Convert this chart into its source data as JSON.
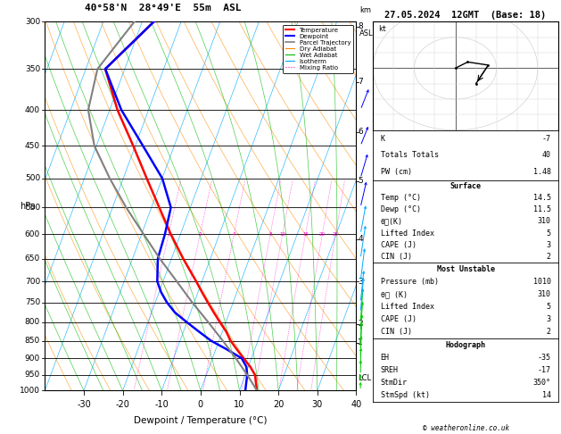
{
  "title_left": "40°58'N  28°49'E  55m  ASL",
  "title_right": "27.05.2024  12GMT  (Base: 18)",
  "xlabel": "Dewpoint / Temperature (°C)",
  "pressure_ticks": [
    300,
    350,
    400,
    450,
    500,
    550,
    600,
    650,
    700,
    750,
    800,
    850,
    900,
    950,
    1000
  ],
  "temp_ticks": [
    -30,
    -20,
    -10,
    0,
    10,
    20,
    30,
    40
  ],
  "km_ticks": [
    1,
    2,
    3,
    4,
    5,
    6,
    7,
    8
  ],
  "km_pressures": [
    855,
    805,
    700,
    610,
    505,
    430,
    365,
    305
  ],
  "lcl_pressure": 960,
  "temperature_profile": {
    "pressure": [
      1000,
      975,
      950,
      925,
      900,
      875,
      850,
      825,
      800,
      775,
      750,
      725,
      700,
      650,
      600,
      550,
      500,
      450,
      400,
      350,
      300
    ],
    "temperature": [
      14.5,
      13.5,
      12.5,
      10.5,
      8.0,
      5.5,
      3.0,
      1.0,
      -1.5,
      -4.0,
      -6.5,
      -9.0,
      -11.5,
      -17.0,
      -22.5,
      -28.0,
      -34.0,
      -40.5,
      -48.0,
      -55.0,
      -47.0
    ]
  },
  "dewpoint_profile": {
    "pressure": [
      1000,
      975,
      950,
      925,
      900,
      875,
      850,
      825,
      800,
      775,
      750,
      725,
      700,
      650,
      600,
      550,
      500,
      450,
      400,
      350,
      300
    ],
    "temperature": [
      11.5,
      11.0,
      10.5,
      9.5,
      7.5,
      3.0,
      -2.0,
      -6.0,
      -10.0,
      -14.0,
      -17.0,
      -19.5,
      -21.5,
      -23.5,
      -24.0,
      -25.0,
      -30.0,
      -38.0,
      -47.0,
      -55.0,
      -47.0
    ]
  },
  "parcel_trajectory": {
    "pressure": [
      1000,
      950,
      900,
      850,
      800,
      750,
      700,
      650,
      600,
      550,
      500,
      450,
      400,
      350,
      300
    ],
    "temperature": [
      14.5,
      10.5,
      6.0,
      1.0,
      -4.5,
      -10.5,
      -16.5,
      -23.0,
      -29.5,
      -36.5,
      -43.5,
      -50.5,
      -55.5,
      -57.0,
      -52.0
    ]
  },
  "wind_barbs": {
    "pressure": [
      1000,
      975,
      950,
      925,
      900,
      875,
      850,
      825,
      800,
      775,
      750,
      700,
      650,
      600,
      550,
      500,
      450,
      400,
      350,
      300
    ],
    "speed_kt": [
      5,
      5,
      8,
      10,
      12,
      15,
      15,
      18,
      20,
      22,
      22,
      25,
      28,
      28,
      30,
      35,
      38,
      40,
      45,
      50
    ],
    "direction_deg": [
      180,
      185,
      190,
      195,
      200,
      205,
      210,
      215,
      215,
      220,
      225,
      230,
      235,
      240,
      245,
      250,
      255,
      255,
      260,
      265
    ]
  },
  "hodograph_points": {
    "u": [
      0.0,
      3.0,
      8.0,
      5.0
    ],
    "v": [
      0.0,
      2.0,
      1.0,
      -5.0
    ]
  },
  "colors": {
    "temperature": "#ff0000",
    "dewpoint": "#0000ff",
    "parcel": "#808080",
    "dry_adiabat": "#ff8c00",
    "wet_adiabat": "#00bb00",
    "isotherm": "#00aaff",
    "mixing_ratio": "#ff00cc",
    "background": "#ffffff",
    "grid": "#000000"
  },
  "info_panel": {
    "K": -7,
    "totals_totals": 40,
    "PW_cm": 1.48,
    "surface_temp": 14.5,
    "surface_dewp": 11.5,
    "theta_e": 310,
    "lifted_index": 5,
    "cape": 3,
    "cin": 2,
    "mu_pressure": 1010,
    "mu_theta_e": 310,
    "mu_lifted_index": 5,
    "mu_cape": 3,
    "mu_cin": 2,
    "EH": -35,
    "SREH": -17,
    "StmDir": "350°",
    "StmSpd_kt": 14
  }
}
